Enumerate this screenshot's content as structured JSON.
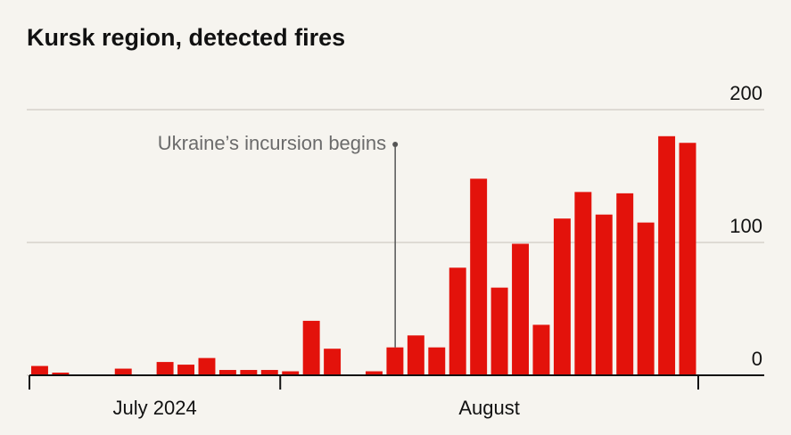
{
  "chart_data": {
    "type": "bar",
    "title": "Kursk region, detected fires",
    "categories": [
      "July 2024",
      null,
      null,
      null,
      null,
      null,
      null,
      null,
      null,
      null,
      null,
      null,
      "August",
      null,
      null,
      null,
      null,
      null,
      null,
      null,
      null,
      null,
      null,
      null,
      null,
      null,
      null,
      null,
      null,
      null,
      null,
      null
    ],
    "values": [
      7,
      2,
      0,
      0,
      5,
      0,
      10,
      8,
      13,
      4,
      4,
      4,
      3,
      41,
      20,
      0,
      3,
      21,
      30,
      21,
      81,
      148,
      66,
      99,
      38,
      118,
      138,
      121,
      137,
      115,
      180,
      175
    ],
    "color": "#e3120b",
    "ylim": [
      0,
      200
    ],
    "yticks": [
      0,
      100,
      200
    ],
    "grid": true,
    "annotation": "Ukraine’s incursion begins"
  }
}
